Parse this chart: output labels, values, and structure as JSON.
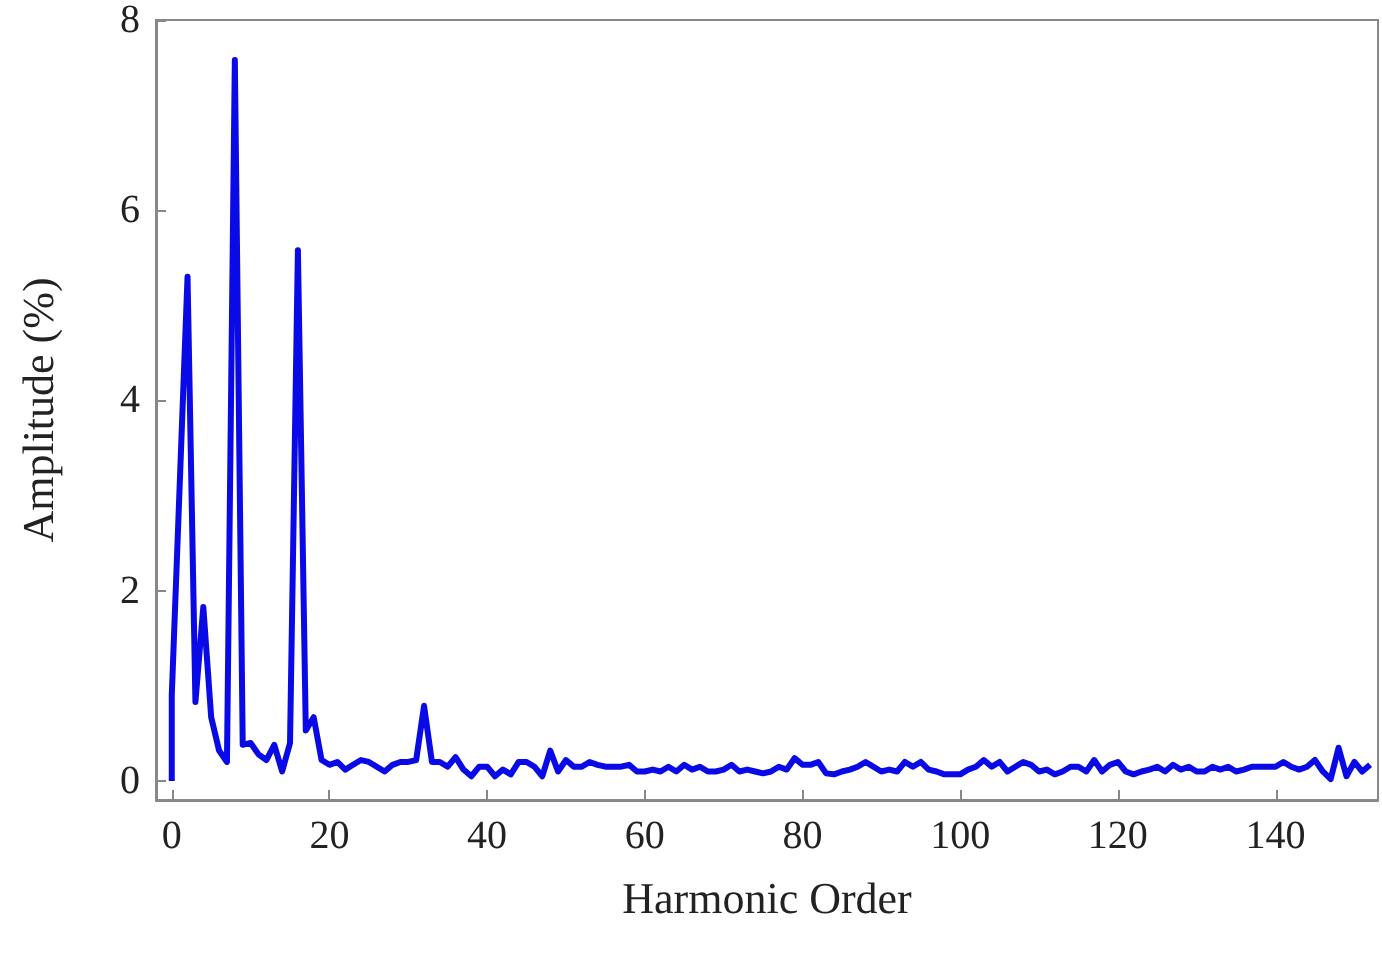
{
  "chart_data": {
    "type": "line",
    "xlabel": "Harmonic Order",
    "ylabel": "Amplitude (%)",
    "xlim": [
      -2,
      153
    ],
    "ylim": [
      -0.2,
      8
    ],
    "xticks": [
      0,
      20,
      40,
      60,
      80,
      100,
      120,
      140
    ],
    "yticks": [
      0,
      2,
      4,
      6,
      8
    ],
    "marker": "none",
    "line_style": "solid",
    "series": [
      {
        "color": "#0a0ae6",
        "x": [
          0,
          0,
          2,
          3,
          4,
          5,
          6,
          7,
          8,
          9,
          10,
          11,
          12,
          13,
          14,
          15,
          16,
          17,
          18,
          19,
          20,
          21,
          22,
          23,
          24,
          25,
          26,
          27,
          28,
          29,
          30,
          31,
          32,
          33,
          34,
          35,
          36,
          37,
          38,
          39,
          40,
          41,
          42,
          43,
          44,
          45,
          46,
          47,
          48,
          49,
          50,
          51,
          52,
          53,
          54,
          55,
          56,
          57,
          58,
          59,
          60,
          61,
          62,
          63,
          64,
          65,
          66,
          67,
          68,
          69,
          70,
          71,
          72,
          73,
          74,
          75,
          76,
          77,
          78,
          79,
          80,
          81,
          82,
          83,
          84,
          85,
          86,
          87,
          88,
          89,
          90,
          91,
          92,
          93,
          94,
          95,
          96,
          97,
          98,
          99,
          100,
          101,
          102,
          103,
          104,
          105,
          106,
          107,
          108,
          109,
          110,
          111,
          112,
          113,
          114,
          115,
          116,
          117,
          118,
          119,
          120,
          121,
          122,
          123,
          124,
          125,
          126,
          127,
          128,
          129,
          130,
          131,
          132,
          133,
          134,
          135,
          136,
          137,
          138,
          139,
          140,
          141,
          142,
          143,
          144,
          145,
          146,
          147,
          148,
          149,
          150,
          151,
          152
        ],
        "values": [
          0,
          0.9,
          5.3,
          0.83,
          1.83,
          0.67,
          0.32,
          0.2,
          7.58,
          0.38,
          0.4,
          0.28,
          0.22,
          0.38,
          0.1,
          0.4,
          5.58,
          0.53,
          0.67,
          0.22,
          0.17,
          0.2,
          0.12,
          0.17,
          0.22,
          0.2,
          0.15,
          0.1,
          0.17,
          0.2,
          0.2,
          0.22,
          0.79,
          0.2,
          0.2,
          0.15,
          0.25,
          0.12,
          0.05,
          0.15,
          0.15,
          0.05,
          0.12,
          0.07,
          0.2,
          0.2,
          0.15,
          0.05,
          0.32,
          0.1,
          0.22,
          0.15,
          0.15,
          0.2,
          0.17,
          0.15,
          0.15,
          0.15,
          0.17,
          0.1,
          0.1,
          0.12,
          0.1,
          0.15,
          0.1,
          0.17,
          0.12,
          0.15,
          0.1,
          0.1,
          0.12,
          0.17,
          0.1,
          0.12,
          0.1,
          0.08,
          0.1,
          0.15,
          0.12,
          0.24,
          0.17,
          0.17,
          0.2,
          0.08,
          0.07,
          0.1,
          0.12,
          0.15,
          0.2,
          0.15,
          0.1,
          0.12,
          0.1,
          0.2,
          0.15,
          0.2,
          0.12,
          0.1,
          0.07,
          0.07,
          0.07,
          0.12,
          0.15,
          0.22,
          0.15,
          0.2,
          0.1,
          0.15,
          0.2,
          0.17,
          0.1,
          0.12,
          0.07,
          0.1,
          0.15,
          0.15,
          0.1,
          0.22,
          0.1,
          0.17,
          0.2,
          0.1,
          0.07,
          0.1,
          0.12,
          0.15,
          0.1,
          0.17,
          0.12,
          0.15,
          0.1,
          0.1,
          0.15,
          0.12,
          0.15,
          0.1,
          0.12,
          0.15,
          0.15,
          0.15,
          0.15,
          0.2,
          0.15,
          0.12,
          0.15,
          0.22,
          0.1,
          0.02,
          0.35,
          0.05,
          0.2,
          0.1,
          0.17
        ]
      }
    ]
  }
}
